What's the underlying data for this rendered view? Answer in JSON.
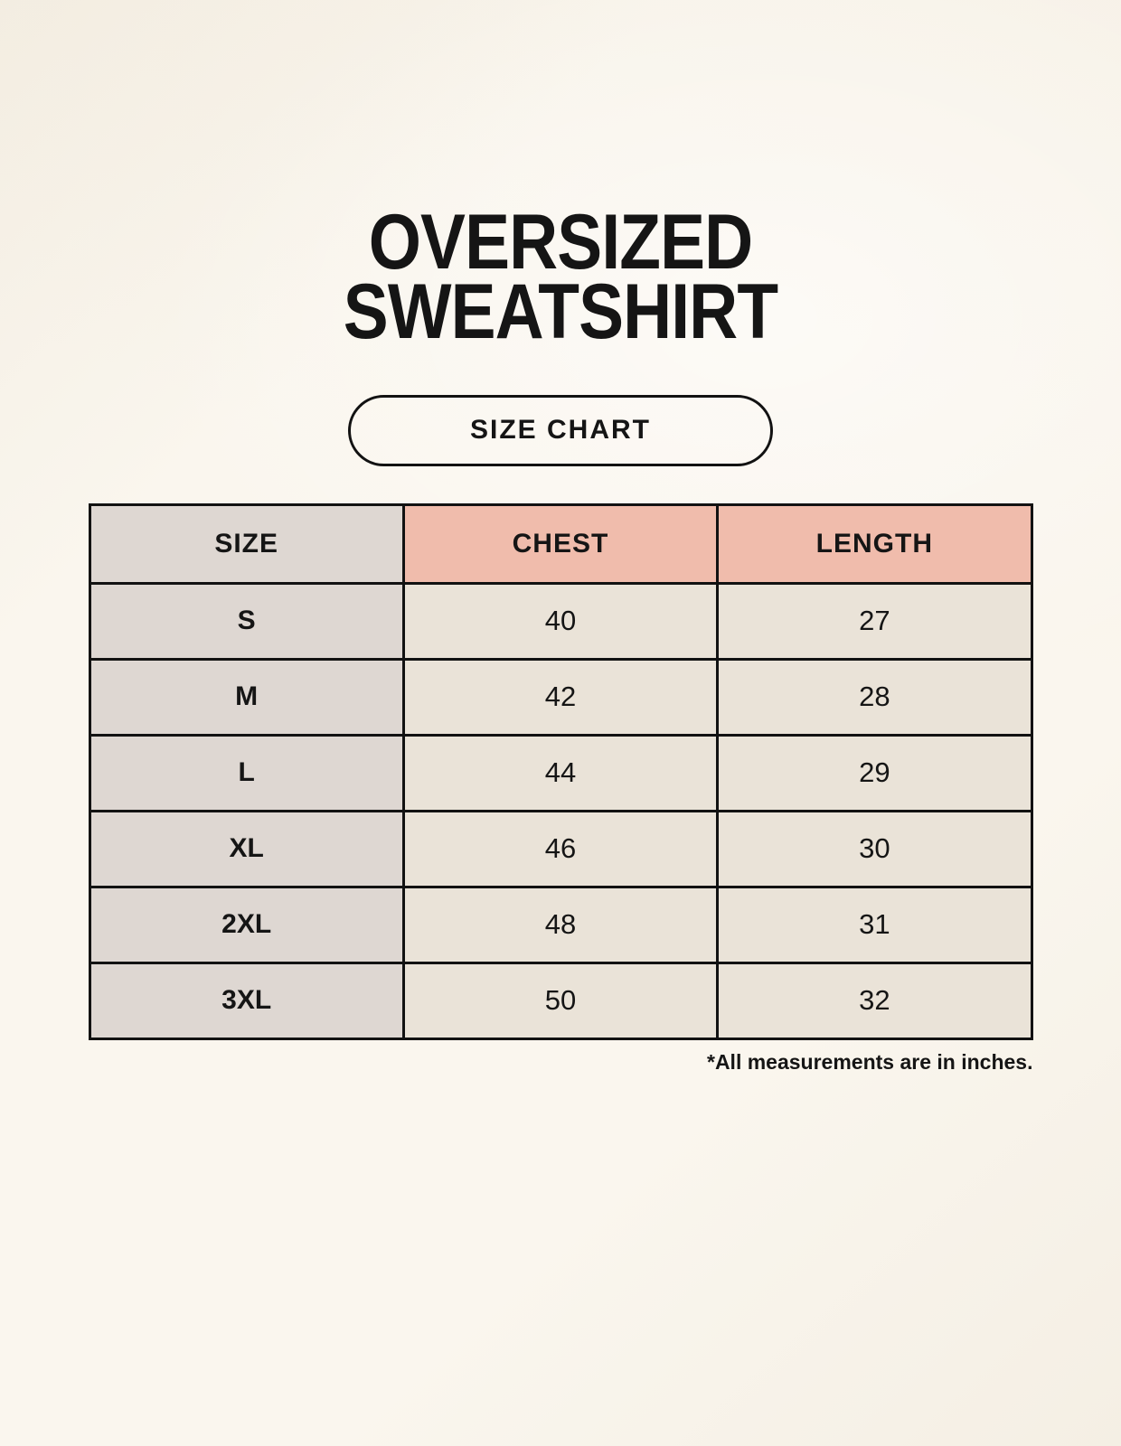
{
  "page": {
    "title_line1": "OVERSIZED",
    "title_line2": "SWEATSHIRT",
    "button_label": "SIZE CHART",
    "footnote": "*All measurements are in inches."
  },
  "chart_data": {
    "type": "table",
    "title": "OVERSIZED SWEATSHIRT SIZE CHART",
    "columns": [
      "SIZE",
      "CHEST",
      "LENGTH"
    ],
    "rows": [
      [
        "S",
        "40",
        "27"
      ],
      [
        "M",
        "42",
        "28"
      ],
      [
        "L",
        "44",
        "29"
      ],
      [
        "XL",
        "46",
        "30"
      ],
      [
        "2XL",
        "48",
        "31"
      ],
      [
        "3XL",
        "50",
        "32"
      ]
    ]
  },
  "colors": {
    "background": "#faf6ee",
    "header_size_bg": "#ded7d2",
    "header_measure_bg": "#f0bcac",
    "first_col_bg": "#ded7d2",
    "cell_bg": "#eae3d8",
    "border": "#121212",
    "text": "#151515"
  }
}
